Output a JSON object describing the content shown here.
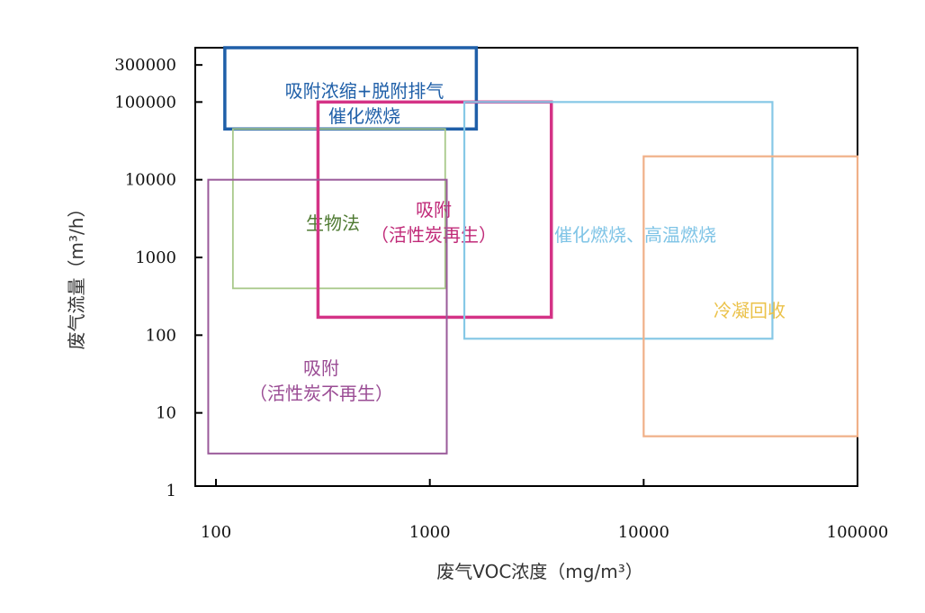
{
  "chart_data": {
    "type": "range-regions",
    "xlabel": "废气VOC浓度（mg/m³）",
    "ylabel": "废气流量（m³/h）",
    "x_scale": "log",
    "y_scale": "log",
    "xlim": [
      80,
      100000
    ],
    "ylim": [
      1,
      500000
    ],
    "x_ticks": [
      100,
      1000,
      10000,
      100000
    ],
    "x_tick_labels": [
      "100",
      "1000",
      "10000",
      "100000"
    ],
    "y_ticks": [
      1,
      10,
      100,
      1000,
      10000,
      100000,
      300000
    ],
    "y_tick_labels": [
      "1",
      "10",
      "100",
      "1000",
      "10000",
      "100000",
      "300000"
    ],
    "grid": false,
    "regions": [
      {
        "labels": [
          "吸附浓缩+脱附排气",
          "催化燃烧"
        ],
        "x_range": [
          110,
          1650
        ],
        "y_range": [
          45000,
          500000
        ],
        "color": "#1f5fa8",
        "label_color": "#1f5fa8"
      },
      {
        "labels": [
          "生物法"
        ],
        "x_range": [
          120,
          1180
        ],
        "y_range": [
          400,
          45000
        ],
        "color": "#a8c98a",
        "label_color": "#4f7a32"
      },
      {
        "labels": [
          "吸附",
          "（活性炭再生）"
        ],
        "x_range": [
          300,
          3700
        ],
        "y_range": [
          170,
          100000
        ],
        "color": "#d43386",
        "label_color": "#c02a78"
      },
      {
        "labels": [
          "催化燃烧、高温燃烧"
        ],
        "x_range": [
          1450,
          40000
        ],
        "y_range": [
          90,
          100000
        ],
        "color": "#86c8e6",
        "label_color": "#7fc4e6"
      },
      {
        "labels": [
          "冷凝回收"
        ],
        "x_range": [
          10000,
          100000
        ],
        "y_range": [
          5,
          20000
        ],
        "color": "#f0b088",
        "label_color": "#ebc24a"
      },
      {
        "labels": [
          "吸附",
          "（活性炭不再生）"
        ],
        "x_range": [
          92,
          1200
        ],
        "y_range": [
          3,
          10000
        ],
        "color": "#9a5a9a",
        "label_color": "#9a4c94"
      }
    ]
  }
}
